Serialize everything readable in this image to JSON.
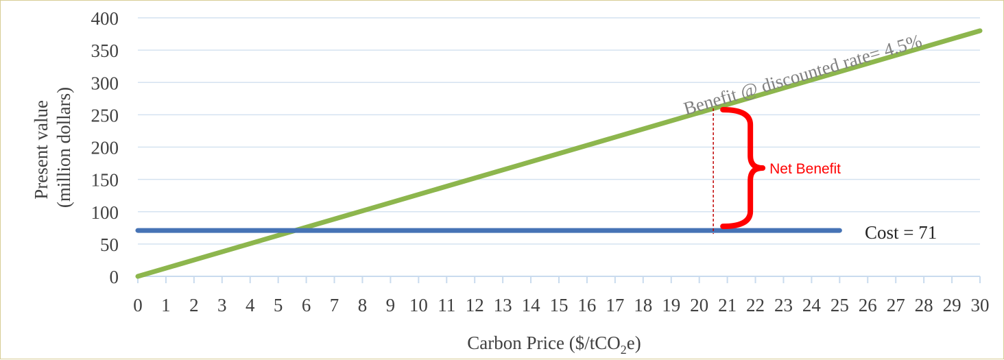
{
  "chart_data": {
    "type": "line",
    "xlabel": "Carbon Price ($/tCO2e)",
    "xlabel_parts": {
      "main": "Carbon Price ($/tCO",
      "sub": "2",
      "tail": "e)"
    },
    "ylabel_lines": [
      "Present value",
      "(million dollars)"
    ],
    "xlim": [
      0,
      30
    ],
    "ylim": [
      0,
      400
    ],
    "x_ticks": [
      0,
      1,
      2,
      3,
      4,
      5,
      6,
      7,
      8,
      9,
      10,
      11,
      12,
      13,
      14,
      15,
      16,
      17,
      18,
      19,
      20,
      21,
      22,
      23,
      24,
      25,
      26,
      27,
      28,
      29,
      30
    ],
    "y_ticks": [
      0,
      50,
      100,
      150,
      200,
      250,
      300,
      350,
      400
    ],
    "grid": "horizontal",
    "series": [
      {
        "name": "Benefit @ discounted rate= 4.5%",
        "color": "#8db64d",
        "x": [
          0,
          30
        ],
        "y": [
          0,
          380
        ]
      },
      {
        "name": "Cost = 71",
        "color": "#4673b5",
        "x": [
          0,
          25
        ],
        "y": [
          71,
          71
        ]
      }
    ],
    "annotations": {
      "benefit_label": "Benefit @ discounted rate= 4.5%",
      "cost_label": "Cost = 71",
      "net_benefit_label": "Net Benefit",
      "net_benefit_at_x": 20.5,
      "net_benefit_from_y": 71,
      "net_benefit_to_y": 260,
      "net_benefit_color": "#ff0000"
    }
  }
}
